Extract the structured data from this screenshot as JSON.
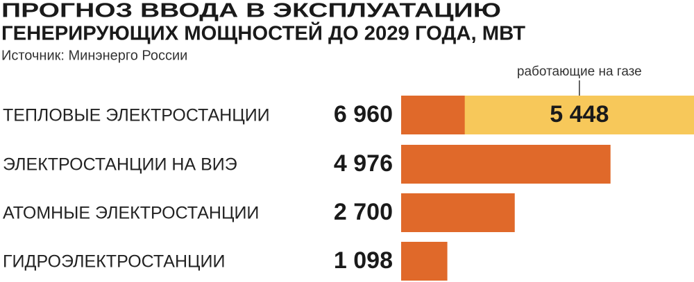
{
  "chart_data": {
    "type": "bar",
    "orientation": "horizontal",
    "title": [
      "ПРОГНОЗ ВВОДА В ЭКСПЛУАТАЦИЮ",
      "ГЕНЕРИРУЮЩИХ МОЩНОСТЕЙ ДО 2029 ГОДА, МВТ"
    ],
    "subtitle": "Источник: Минэнерго России",
    "categories": [
      "ТЕПЛОВЫЕ ЭЛЕКТРОСТАНЦИИ",
      "ЭЛЕКТРОСТАНЦИИ НА ВИЭ",
      "АТОМНЫЕ ЭЛЕКТРОСТАНЦИИ",
      "ГИДРОЭЛЕКТРОСТАНЦИИ"
    ],
    "values": [
      6960,
      4976,
      2700,
      1098
    ],
    "value_labels": [
      "6 960",
      "4 976",
      "2 700",
      "1 098"
    ],
    "color": "#e0692a",
    "highlight": {
      "name": "работающие на газе",
      "color": "#f7c85a",
      "values": [
        5448,
        null,
        null,
        null
      ],
      "value_labels": [
        "5 448",
        null,
        null,
        null
      ]
    }
  }
}
